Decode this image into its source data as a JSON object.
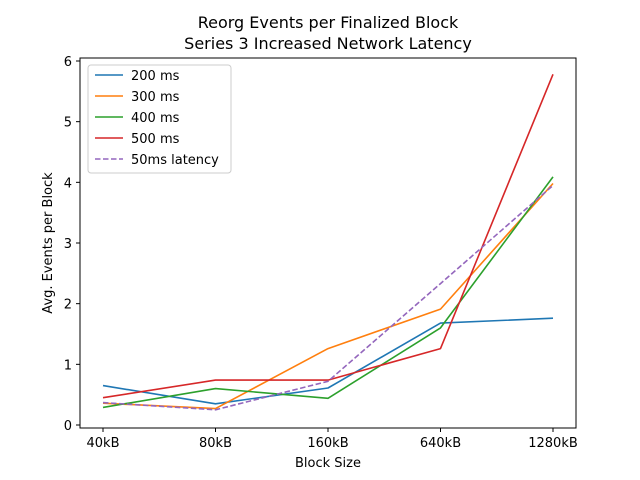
{
  "chart_data": {
    "type": "line",
    "title": "Reorg Events per Finalized Block",
    "subtitle": "Series 3 Increased Network Latency",
    "xlabel": "Block Size",
    "ylabel": "Avg. Events per Block",
    "categories": [
      "40kB",
      "80kB",
      "160kB",
      "640kB",
      "1280kB"
    ],
    "ylim": [
      0,
      6
    ],
    "yticks": [
      "0",
      "1",
      "2",
      "3",
      "4",
      "5",
      "6"
    ],
    "grid": false,
    "legend_position": "top-left",
    "series": [
      {
        "name": "200 ms",
        "color": "#1f77b4",
        "dash": "solid",
        "values": [
          0.65,
          0.35,
          0.61,
          1.68,
          1.76
        ]
      },
      {
        "name": "300 ms",
        "color": "#ff7f0e",
        "dash": "solid",
        "values": [
          0.36,
          0.27,
          1.26,
          1.91,
          3.98
        ]
      },
      {
        "name": "400 ms",
        "color": "#2ca02c",
        "dash": "solid",
        "values": [
          0.29,
          0.6,
          0.44,
          1.6,
          4.09
        ]
      },
      {
        "name": "500 ms",
        "color": "#d62728",
        "dash": "solid",
        "values": [
          0.45,
          0.74,
          0.74,
          1.26,
          5.78
        ]
      },
      {
        "name": "50ms latency",
        "color": "#9467bd",
        "dash": "dashed",
        "values": [
          0.37,
          0.25,
          0.72,
          2.33,
          3.95
        ]
      }
    ]
  }
}
